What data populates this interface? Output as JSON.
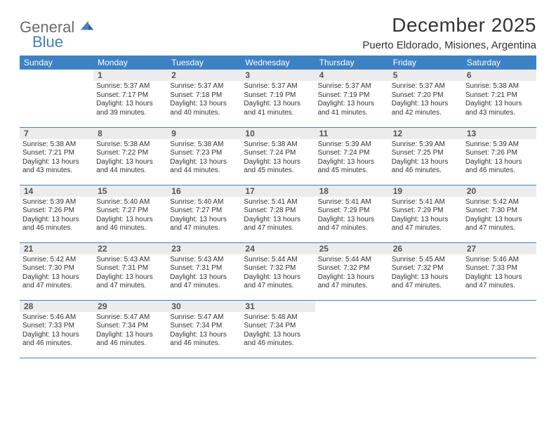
{
  "logo": {
    "word1": "General",
    "word2": "Blue"
  },
  "header": {
    "month_title": "December 2025",
    "location": "Puerto Eldorado, Misiones, Argentina"
  },
  "colors": {
    "accent": "#3d82c4",
    "daynum_bg": "#ececec",
    "text": "#333333",
    "logo_gray": "#6c6c6c"
  },
  "dow": [
    "Sunday",
    "Monday",
    "Tuesday",
    "Wednesday",
    "Thursday",
    "Friday",
    "Saturday"
  ],
  "weeks": [
    [
      {
        "n": "",
        "sr": "",
        "ss": "",
        "dl": ""
      },
      {
        "n": "1",
        "sr": "Sunrise: 5:37 AM",
        "ss": "Sunset: 7:17 PM",
        "dl": "Daylight: 13 hours and 39 minutes."
      },
      {
        "n": "2",
        "sr": "Sunrise: 5:37 AM",
        "ss": "Sunset: 7:18 PM",
        "dl": "Daylight: 13 hours and 40 minutes."
      },
      {
        "n": "3",
        "sr": "Sunrise: 5:37 AM",
        "ss": "Sunset: 7:19 PM",
        "dl": "Daylight: 13 hours and 41 minutes."
      },
      {
        "n": "4",
        "sr": "Sunrise: 5:37 AM",
        "ss": "Sunset: 7:19 PM",
        "dl": "Daylight: 13 hours and 41 minutes."
      },
      {
        "n": "5",
        "sr": "Sunrise: 5:37 AM",
        "ss": "Sunset: 7:20 PM",
        "dl": "Daylight: 13 hours and 42 minutes."
      },
      {
        "n": "6",
        "sr": "Sunrise: 5:38 AM",
        "ss": "Sunset: 7:21 PM",
        "dl": "Daylight: 13 hours and 43 minutes."
      }
    ],
    [
      {
        "n": "7",
        "sr": "Sunrise: 5:38 AM",
        "ss": "Sunset: 7:21 PM",
        "dl": "Daylight: 13 hours and 43 minutes."
      },
      {
        "n": "8",
        "sr": "Sunrise: 5:38 AM",
        "ss": "Sunset: 7:22 PM",
        "dl": "Daylight: 13 hours and 44 minutes."
      },
      {
        "n": "9",
        "sr": "Sunrise: 5:38 AM",
        "ss": "Sunset: 7:23 PM",
        "dl": "Daylight: 13 hours and 44 minutes."
      },
      {
        "n": "10",
        "sr": "Sunrise: 5:38 AM",
        "ss": "Sunset: 7:24 PM",
        "dl": "Daylight: 13 hours and 45 minutes."
      },
      {
        "n": "11",
        "sr": "Sunrise: 5:39 AM",
        "ss": "Sunset: 7:24 PM",
        "dl": "Daylight: 13 hours and 45 minutes."
      },
      {
        "n": "12",
        "sr": "Sunrise: 5:39 AM",
        "ss": "Sunset: 7:25 PM",
        "dl": "Daylight: 13 hours and 46 minutes."
      },
      {
        "n": "13",
        "sr": "Sunrise: 5:39 AM",
        "ss": "Sunset: 7:26 PM",
        "dl": "Daylight: 13 hours and 46 minutes."
      }
    ],
    [
      {
        "n": "14",
        "sr": "Sunrise: 5:39 AM",
        "ss": "Sunset: 7:26 PM",
        "dl": "Daylight: 13 hours and 46 minutes."
      },
      {
        "n": "15",
        "sr": "Sunrise: 5:40 AM",
        "ss": "Sunset: 7:27 PM",
        "dl": "Daylight: 13 hours and 46 minutes."
      },
      {
        "n": "16",
        "sr": "Sunrise: 5:40 AM",
        "ss": "Sunset: 7:27 PM",
        "dl": "Daylight: 13 hours and 47 minutes."
      },
      {
        "n": "17",
        "sr": "Sunrise: 5:41 AM",
        "ss": "Sunset: 7:28 PM",
        "dl": "Daylight: 13 hours and 47 minutes."
      },
      {
        "n": "18",
        "sr": "Sunrise: 5:41 AM",
        "ss": "Sunset: 7:29 PM",
        "dl": "Daylight: 13 hours and 47 minutes."
      },
      {
        "n": "19",
        "sr": "Sunrise: 5:41 AM",
        "ss": "Sunset: 7:29 PM",
        "dl": "Daylight: 13 hours and 47 minutes."
      },
      {
        "n": "20",
        "sr": "Sunrise: 5:42 AM",
        "ss": "Sunset: 7:30 PM",
        "dl": "Daylight: 13 hours and 47 minutes."
      }
    ],
    [
      {
        "n": "21",
        "sr": "Sunrise: 5:42 AM",
        "ss": "Sunset: 7:30 PM",
        "dl": "Daylight: 13 hours and 47 minutes."
      },
      {
        "n": "22",
        "sr": "Sunrise: 5:43 AM",
        "ss": "Sunset: 7:31 PM",
        "dl": "Daylight: 13 hours and 47 minutes."
      },
      {
        "n": "23",
        "sr": "Sunrise: 5:43 AM",
        "ss": "Sunset: 7:31 PM",
        "dl": "Daylight: 13 hours and 47 minutes."
      },
      {
        "n": "24",
        "sr": "Sunrise: 5:44 AM",
        "ss": "Sunset: 7:32 PM",
        "dl": "Daylight: 13 hours and 47 minutes."
      },
      {
        "n": "25",
        "sr": "Sunrise: 5:44 AM",
        "ss": "Sunset: 7:32 PM",
        "dl": "Daylight: 13 hours and 47 minutes."
      },
      {
        "n": "26",
        "sr": "Sunrise: 5:45 AM",
        "ss": "Sunset: 7:32 PM",
        "dl": "Daylight: 13 hours and 47 minutes."
      },
      {
        "n": "27",
        "sr": "Sunrise: 5:46 AM",
        "ss": "Sunset: 7:33 PM",
        "dl": "Daylight: 13 hours and 47 minutes."
      }
    ],
    [
      {
        "n": "28",
        "sr": "Sunrise: 5:46 AM",
        "ss": "Sunset: 7:33 PM",
        "dl": "Daylight: 13 hours and 46 minutes."
      },
      {
        "n": "29",
        "sr": "Sunrise: 5:47 AM",
        "ss": "Sunset: 7:34 PM",
        "dl": "Daylight: 13 hours and 46 minutes."
      },
      {
        "n": "30",
        "sr": "Sunrise: 5:47 AM",
        "ss": "Sunset: 7:34 PM",
        "dl": "Daylight: 13 hours and 46 minutes."
      },
      {
        "n": "31",
        "sr": "Sunrise: 5:48 AM",
        "ss": "Sunset: 7:34 PM",
        "dl": "Daylight: 13 hours and 46 minutes."
      },
      {
        "n": "",
        "sr": "",
        "ss": "",
        "dl": ""
      },
      {
        "n": "",
        "sr": "",
        "ss": "",
        "dl": ""
      },
      {
        "n": "",
        "sr": "",
        "ss": "",
        "dl": ""
      }
    ]
  ]
}
